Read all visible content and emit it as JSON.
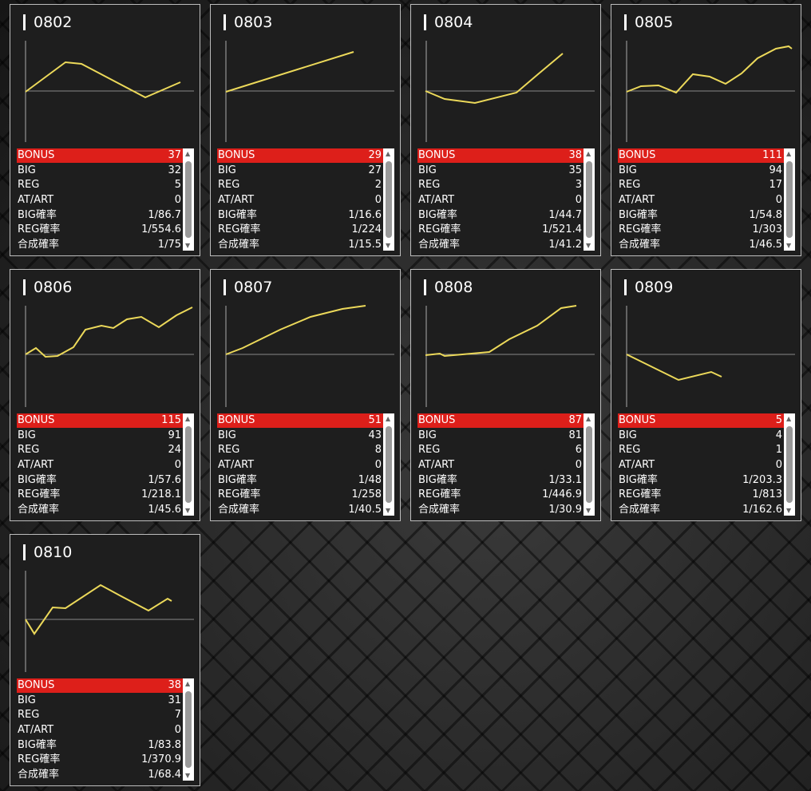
{
  "row_labels": [
    "BONUS",
    "BIG",
    "REG",
    "AT/ART",
    "BIG確率",
    "REG確率",
    "合成確率"
  ],
  "panels": [
    {
      "id": "0802",
      "values": [
        37,
        32,
        5,
        0,
        "1/86.7",
        "1/554.6",
        "1/75"
      ]
    },
    {
      "id": "0803",
      "values": [
        29,
        27,
        2,
        0,
        "1/16.6",
        "1/224",
        "1/15.5"
      ]
    },
    {
      "id": "0804",
      "values": [
        38,
        35,
        3,
        0,
        "1/44.7",
        "1/521.4",
        "1/41.2"
      ]
    },
    {
      "id": "0805",
      "values": [
        111,
        94,
        17,
        0,
        "1/54.8",
        "1/303",
        "1/46.5"
      ]
    },
    {
      "id": "0806",
      "values": [
        115,
        91,
        24,
        0,
        "1/57.6",
        "1/218.1",
        "1/45.6"
      ]
    },
    {
      "id": "0807",
      "values": [
        51,
        43,
        8,
        0,
        "1/48",
        "1/258",
        "1/40.5"
      ]
    },
    {
      "id": "0808",
      "values": [
        87,
        81,
        6,
        0,
        "1/33.1",
        "1/446.9",
        "1/30.9"
      ]
    },
    {
      "id": "0809",
      "values": [
        5,
        4,
        1,
        0,
        "1/203.3",
        "1/813",
        "1/162.6"
      ]
    },
    {
      "id": "0810",
      "values": [
        38,
        31,
        7,
        0,
        "1/83.8",
        "1/370.9",
        "1/68.4"
      ]
    }
  ]
}
